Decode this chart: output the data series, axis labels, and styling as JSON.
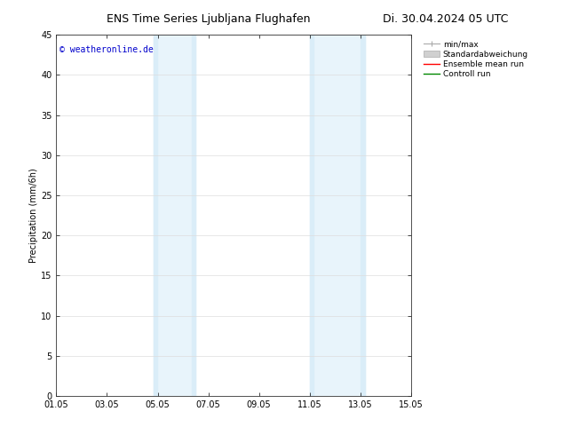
{
  "title_left": "ENS Time Series Ljubljana Flughafen",
  "title_right": "Di. 30.04.2024 05 UTC",
  "ylabel": "Precipitation (mm/6h)",
  "ylim": [
    0,
    45
  ],
  "yticks": [
    0,
    5,
    10,
    15,
    20,
    25,
    30,
    35,
    40,
    45
  ],
  "x_start_day": 0,
  "x_end_day": 14,
  "xtick_labels": [
    "01.05",
    "03.05",
    "05.05",
    "07.05",
    "09.05",
    "11.05",
    "13.05",
    "15.05"
  ],
  "xtick_positions_days": [
    0,
    2,
    4,
    6,
    8,
    10,
    12,
    14
  ],
  "shade_bands": [
    {
      "start_day": 3.83,
      "end_day": 5.5
    },
    {
      "start_day": 10.0,
      "end_day": 12.17
    }
  ],
  "shade_color": "#daedf8",
  "shade_color2": "#e8f4fb",
  "bg_color": "#ffffff",
  "copyright_text": "© weatheronline.de",
  "copyright_color": "#0000cc",
  "legend_entries": [
    {
      "label": "min/max",
      "type": "line",
      "color": "#aaaaaa"
    },
    {
      "label": "Standardabweichung",
      "type": "box",
      "facecolor": "#d0d0d0",
      "edgecolor": "#aaaaaa"
    },
    {
      "label": "Ensemble mean run",
      "type": "line",
      "color": "#ff0000"
    },
    {
      "label": "Controll run",
      "type": "line",
      "color": "#008800"
    }
  ],
  "title_fontsize": 9,
  "axis_fontsize": 7,
  "tick_fontsize": 7,
  "copyright_fontsize": 7,
  "legend_fontsize": 6.5
}
